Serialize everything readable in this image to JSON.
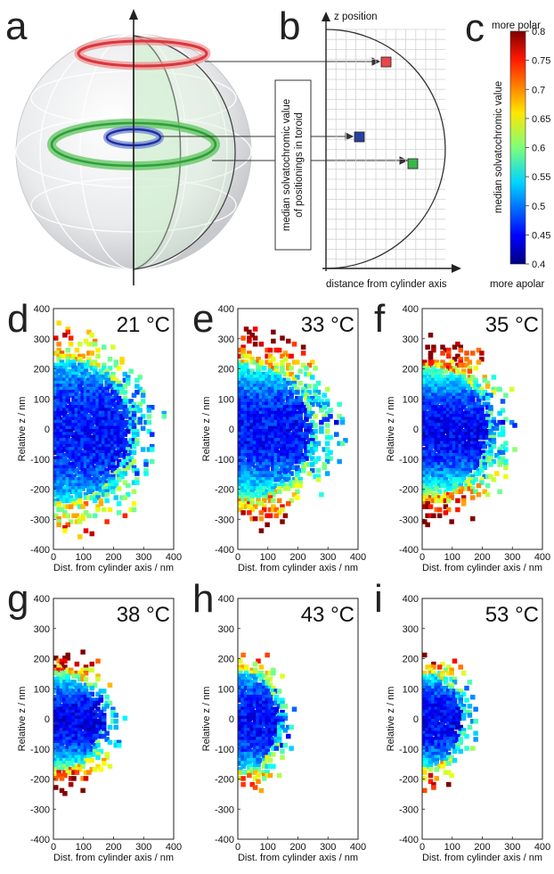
{
  "panel_labels": [
    "a",
    "b",
    "c",
    "d",
    "e",
    "f",
    "g",
    "h",
    "i"
  ],
  "schematic_b": {
    "y_axis_label": "z position",
    "x_axis_label": "distance from cylinder axis",
    "box_text_line1": "median solvatochromic value",
    "box_text_line2": "of positionings in toroid",
    "marker_colors": {
      "red": "#e8474c",
      "blue": "#2a3fa0",
      "green": "#3bb54a"
    }
  },
  "colorbar_c": {
    "top_label": "more polar",
    "bottom_label": "more apolar",
    "title": "median solvatochromic value",
    "ticks": [
      "0.8",
      "0.75",
      "0.7",
      "0.65",
      "0.6",
      "0.55",
      "0.5",
      "0.45",
      "0.4"
    ],
    "colormap": "jet"
  },
  "chart_data": [
    {
      "panel": "d",
      "type": "heatmap",
      "temperature": "21 °C",
      "xlabel": "Dist. from cylinder axis / nm",
      "ylabel": "Relative z / nm",
      "xlim": [
        0,
        400
      ],
      "ylim": [
        -400,
        400
      ],
      "xticks": [
        "0",
        "100",
        "200",
        "300",
        "400"
      ],
      "yticks": [
        "400",
        "300",
        "200",
        "100",
        "0",
        "-100",
        "-200",
        "-300",
        "-400"
      ]
    },
    {
      "panel": "e",
      "type": "heatmap",
      "temperature": "33 °C",
      "xlabel": "Dist. from cylinder axis / nm",
      "ylabel": "Relative z / nm",
      "xlim": [
        0,
        400
      ],
      "ylim": [
        -400,
        400
      ],
      "xticks": [
        "0",
        "100",
        "200",
        "300",
        "400"
      ],
      "yticks": [
        "400",
        "300",
        "200",
        "100",
        "0",
        "-100",
        "-200",
        "-300",
        "-400"
      ]
    },
    {
      "panel": "f",
      "type": "heatmap",
      "temperature": "35 °C",
      "xlabel": "Dist. from cylinder axis / nm",
      "ylabel": "Relative z / nm",
      "xlim": [
        0,
        400
      ],
      "ylim": [
        -400,
        400
      ],
      "xticks": [
        "0",
        "100",
        "200",
        "300",
        "400"
      ],
      "yticks": [
        "400",
        "300",
        "200",
        "100",
        "0",
        "-100",
        "-200",
        "-300",
        "-400"
      ]
    },
    {
      "panel": "g",
      "type": "heatmap",
      "temperature": "38 °C",
      "xlabel": "Dist. from cylinder axis / nm",
      "ylabel": "Relative z / nm",
      "xlim": [
        0,
        400
      ],
      "ylim": [
        -400,
        400
      ],
      "xticks": [
        "0",
        "100",
        "200",
        "300",
        "400"
      ],
      "yticks": [
        "400",
        "300",
        "200",
        "100",
        "0",
        "-100",
        "-200",
        "-300",
        "-400"
      ]
    },
    {
      "panel": "h",
      "type": "heatmap",
      "temperature": "43 °C",
      "xlabel": "Dist. from cylinder axis / nm",
      "ylabel": "Relative z / nm",
      "xlim": [
        0,
        400
      ],
      "ylim": [
        -400,
        400
      ],
      "xticks": [
        "0",
        "100",
        "200",
        "300",
        "400"
      ],
      "yticks": [
        "400",
        "300",
        "200",
        "100",
        "0",
        "-100",
        "-200",
        "-300",
        "-400"
      ]
    },
    {
      "panel": "i",
      "type": "heatmap",
      "temperature": "53 °C",
      "xlabel": "Dist. from cylinder axis / nm",
      "ylabel": "Relative z / nm",
      "xlim": [
        0,
        400
      ],
      "ylim": [
        -400,
        400
      ],
      "xticks": [
        "0",
        "100",
        "200",
        "300",
        "400"
      ],
      "yticks": [
        "400",
        "300",
        "200",
        "100",
        "0",
        "-100",
        "-200",
        "-300",
        "-400"
      ]
    }
  ]
}
